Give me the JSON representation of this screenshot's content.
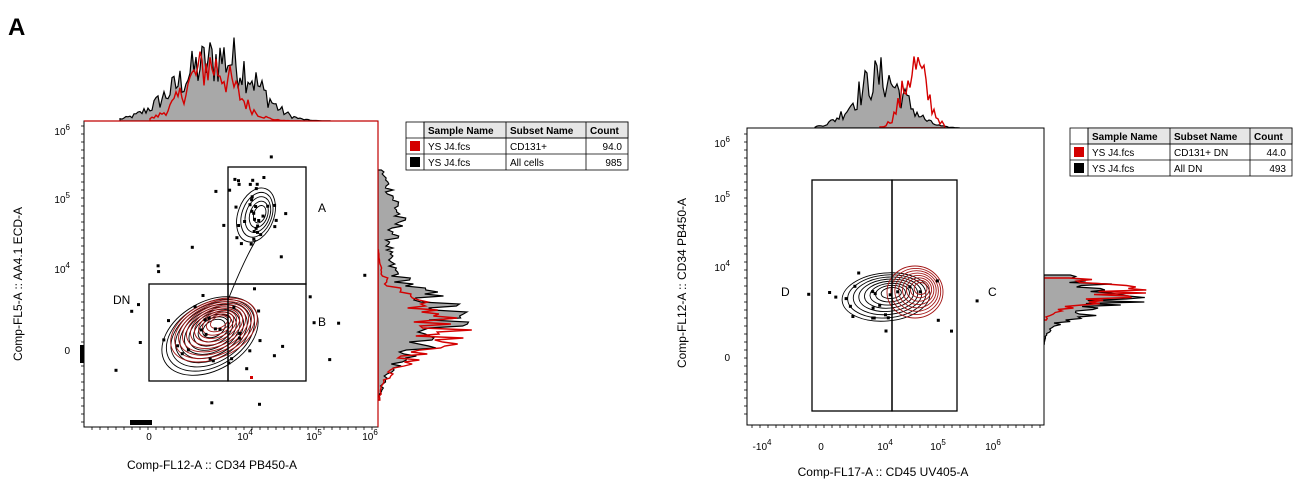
{
  "panel_label": "A",
  "colors": {
    "red": "#d40000",
    "black": "#000000",
    "gray": "#a8a8a8",
    "contour_red": "#a31515"
  },
  "chart_data": [
    {
      "type": "scatter",
      "subtype": "flow-cytometry contour plot with marginal histograms",
      "xlabel": "Comp-FL12-A :: CD34 PB450-A",
      "ylabel": "Comp-FL5-A :: AA4.1 ECD-A",
      "x_ticks": [
        {
          "label": "0",
          "sup": ""
        },
        {
          "label": "10",
          "sup": "4"
        },
        {
          "label": "10",
          "sup": "5"
        },
        {
          "label": "10",
          "sup": "6"
        }
      ],
      "y_ticks": [
        {
          "label": "0",
          "sup": ""
        },
        {
          "label": "10",
          "sup": "4"
        },
        {
          "label": "10",
          "sup": "5"
        },
        {
          "label": "10",
          "sup": "6"
        }
      ],
      "scale": "biexponential (log with linear region around 0)",
      "gates": [
        {
          "name": "A",
          "x_range": [
            "~5e3",
            "1e5"
          ],
          "y_range": [
            "~8e3",
            "~3e5"
          ]
        },
        {
          "name": "B",
          "x_range": [
            "~5e3",
            "1e5"
          ],
          "y_range": [
            "-1e3",
            "~8e3"
          ]
        },
        {
          "name": "DN",
          "x_range": [
            "0",
            "~5e3"
          ],
          "y_range": [
            "-1e3",
            "~8e3"
          ]
        }
      ],
      "legend": {
        "headers": [
          "Sample Name",
          "Subset Name",
          "Count"
        ],
        "rows": [
          {
            "color": "#d40000",
            "sample": "YS J4.fcs",
            "subset": "CD131+",
            "count": "94.0"
          },
          {
            "color": "#000000",
            "sample": "YS J4.fcs",
            "subset": "All cells",
            "count": "985"
          }
        ]
      },
      "series": [
        {
          "name": "CD131+",
          "color": "#d40000",
          "x_center": "~4e3",
          "y_center": "~2e3",
          "count": 94
        },
        {
          "name": "All cells",
          "color": "#000000",
          "x_center": "~3e3",
          "y_center": "~2e3",
          "count": 985
        }
      ]
    },
    {
      "type": "scatter",
      "subtype": "flow-cytometry contour plot with marginal histograms",
      "xlabel": "Comp-FL17-A :: CD45 UV405-A",
      "ylabel": "Comp-FL12-A :: CD34 PB450-A",
      "x_ticks": [
        {
          "label": "-10",
          "sup": "4"
        },
        {
          "label": "0",
          "sup": ""
        },
        {
          "label": "10",
          "sup": "4"
        },
        {
          "label": "10",
          "sup": "5"
        },
        {
          "label": "10",
          "sup": "6"
        }
      ],
      "y_ticks": [
        {
          "label": "0",
          "sup": ""
        },
        {
          "label": "10",
          "sup": "4"
        },
        {
          "label": "10",
          "sup": "5"
        },
        {
          "label": "10",
          "sup": "6"
        }
      ],
      "scale": "biexponential (log with linear region around 0)",
      "gates": [
        {
          "name": "D",
          "x_range": [
            "0",
            "~1.5e4"
          ],
          "y_range": [
            "< 0",
            "~2e5"
          ]
        },
        {
          "name": "C",
          "x_range": [
            "~1.5e4",
            "~2e5"
          ],
          "y_range": [
            "< 0",
            "~2e5"
          ]
        }
      ],
      "legend": {
        "headers": [
          "Sample Name",
          "Subset Name",
          "Count"
        ],
        "rows": [
          {
            "color": "#d40000",
            "sample": "YS J4.fcs",
            "subset": "CD131+ DN",
            "count": "44.0"
          },
          {
            "color": "#000000",
            "sample": "YS J4.fcs",
            "subset": "All DN",
            "count": "493"
          }
        ]
      },
      "series": [
        {
          "name": "CD131+ DN",
          "color": "#d40000",
          "x_center": "~2.5e4",
          "y_center": "~5e3",
          "count": 44
        },
        {
          "name": "All DN",
          "color": "#000000",
          "x_center": "~1.5e4",
          "y_center": "~4e3",
          "count": 493
        }
      ]
    }
  ]
}
